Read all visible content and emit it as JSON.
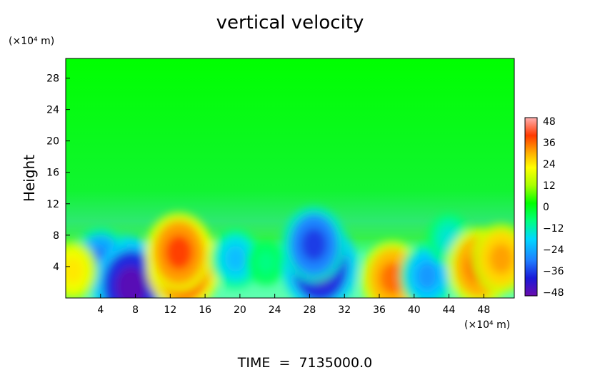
{
  "chart_data": {
    "type": "heatmap",
    "title": "vertical velocity",
    "ylabel": "Height",
    "y_unit_label": "(×10⁴ m)",
    "x_unit_label": "(×10⁴ m)",
    "x_ticks": [
      "4",
      "8",
      "12",
      "16",
      "20",
      "24",
      "28",
      "32",
      "36",
      "40",
      "44",
      "48"
    ],
    "y_ticks": [
      "4",
      "8",
      "12",
      "16",
      "20",
      "24",
      "28"
    ],
    "xlim": [
      0,
      51.5
    ],
    "ylim": [
      0,
      30.5
    ],
    "colorbar": {
      "ticks": [
        "48",
        "36",
        "24",
        "12",
        "0",
        "-12",
        "-24",
        "-36",
        "-48"
      ],
      "range": [
        -48,
        48
      ],
      "colors": [
        "#6a0dad",
        "#1a1ad8",
        "#1f7fff",
        "#00d8ff",
        "#00ff7f",
        "#00ff00",
        "#a8ff00",
        "#ffff00",
        "#ffb000",
        "#ff3a00",
        "#ffb0b0"
      ]
    },
    "background_value": 0,
    "features": [
      {
        "x": 6.8,
        "y": 2.8,
        "value": -40
      },
      {
        "x": 4.0,
        "y": 4.5,
        "value": -30
      },
      {
        "x": 7.5,
        "y": 1.5,
        "value": -46
      },
      {
        "x": 13.5,
        "y": 4.0,
        "value": 44
      },
      {
        "x": 13.0,
        "y": 5.8,
        "value": 38
      },
      {
        "x": 19.5,
        "y": 5.0,
        "value": -22
      },
      {
        "x": 23.0,
        "y": 4.5,
        "value": -10
      },
      {
        "x": 29.2,
        "y": 4.0,
        "value": -45
      },
      {
        "x": 28.5,
        "y": 6.8,
        "value": -35
      },
      {
        "x": 37.5,
        "y": 2.5,
        "value": 34
      },
      {
        "x": 41.5,
        "y": 2.8,
        "value": -26
      },
      {
        "x": 44.0,
        "y": 7.5,
        "value": -16
      },
      {
        "x": 47.5,
        "y": 4.0,
        "value": 36
      },
      {
        "x": 50.0,
        "y": 5.0,
        "value": 30
      },
      {
        "x": 0.8,
        "y": 3.5,
        "value": 22
      }
    ],
    "footer": "TIME  =  7135000.0"
  }
}
